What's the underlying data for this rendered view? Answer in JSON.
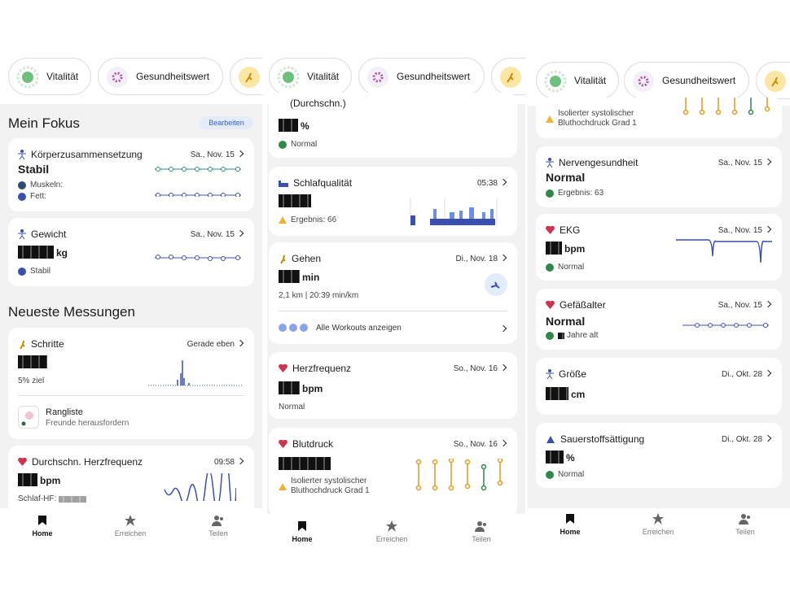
{
  "screens": [
    {
      "tabs": [
        "Vitalität",
        "Gesundheitswert"
      ],
      "section1": "Mein Fokus",
      "edit": "Bearbeiten",
      "section2": "Neueste Messungen",
      "cards": [
        {
          "title": "Körperzusammensetzung",
          "date": "Sa., Nov. 15",
          "status": "Stabil",
          "lines": [
            "Muskeln:",
            "Fett:"
          ]
        },
        {
          "title": "Gewicht",
          "date": "Sa., Nov. 15",
          "unit": "kg",
          "note": "Stabil"
        },
        {
          "title": "Schritte",
          "date": "Gerade eben",
          "note": "5% ziel",
          "extra_title": "Rangliste",
          "extra_sub": "Freunde herausfordern"
        },
        {
          "title": "Durchschn. Herzfrequenz",
          "date": "09:58",
          "unit": "bpm",
          "note": "Schlaf-HF:"
        }
      ],
      "nav": [
        "Home",
        "Erreichen",
        "Teilen"
      ]
    },
    {
      "tabs": [
        "Vitalität",
        "Gesundheitswert"
      ],
      "cards": [
        {
          "title": "(Durchschn.)",
          "unit": "%",
          "note": "Normal"
        },
        {
          "title": "Schlafqualität",
          "date": "05:38",
          "note": "Ergebnis: 66"
        },
        {
          "title": "Gehen",
          "date": "Di., Nov. 18",
          "unit": "min",
          "note": "2,1 km | 20:39 min/km",
          "link": "Alle Workouts anzeigen"
        },
        {
          "title": "Herzfrequenz",
          "date": "So., Nov. 16",
          "unit": "bpm",
          "note": "Normal"
        },
        {
          "title": "Blutdruck",
          "date": "So., Nov. 16",
          "note": "Isolierter systolischer Bluthochdruck Grad 1"
        }
      ],
      "nav": [
        "Home",
        "Erreichen",
        "Teilen"
      ]
    },
    {
      "tabs": [
        "Vitalität",
        "Gesundheitswert"
      ],
      "cards": [
        {
          "note": "Isolierter systolischer Bluthochdruck Grad 1"
        },
        {
          "title": "Nervengesundheit",
          "date": "Sa., Nov. 15",
          "status": "Normal",
          "note": "Ergebnis: 63"
        },
        {
          "title": "EKG",
          "date": "Sa., Nov. 15",
          "unit": "bpm",
          "note": "Normal"
        },
        {
          "title": "Gefäßalter",
          "date": "Sa., Nov. 15",
          "status": "Normal",
          "note": "Jahre alt"
        },
        {
          "title": "Größe",
          "date": "Di., Okt. 28",
          "unit": "cm"
        },
        {
          "title": "Sauerstoffsättigung",
          "date": "Di., Okt. 28",
          "unit": "%",
          "note": "Normal"
        }
      ],
      "nav": [
        "Home",
        "Erreichen",
        "Teilen"
      ]
    }
  ]
}
